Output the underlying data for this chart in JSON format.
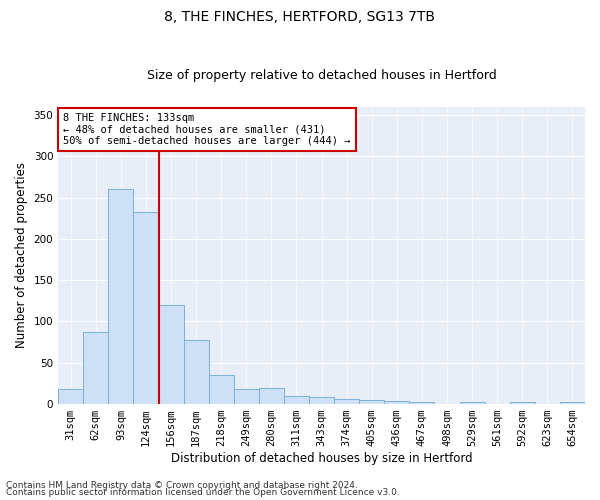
{
  "title1": "8, THE FINCHES, HERTFORD, SG13 7TB",
  "title2": "Size of property relative to detached houses in Hertford",
  "xlabel": "Distribution of detached houses by size in Hertford",
  "ylabel": "Number of detached properties",
  "categories": [
    "31sqm",
    "62sqm",
    "93sqm",
    "124sqm",
    "156sqm",
    "187sqm",
    "218sqm",
    "249sqm",
    "280sqm",
    "311sqm",
    "343sqm",
    "374sqm",
    "405sqm",
    "436sqm",
    "467sqm",
    "498sqm",
    "529sqm",
    "561sqm",
    "592sqm",
    "623sqm",
    "654sqm"
  ],
  "values": [
    18,
    87,
    260,
    232,
    120,
    78,
    35,
    18,
    20,
    10,
    8,
    6,
    5,
    4,
    3,
    0,
    3,
    0,
    3,
    0,
    3
  ],
  "bar_color": "#cde0f5",
  "bar_edge_color": "#7ab0d8",
  "vline_color": "#cc0000",
  "annotation_text": "8 THE FINCHES: 133sqm\n← 48% of detached houses are smaller (431)\n50% of semi-detached houses are larger (444) →",
  "annotation_box_color": "#ffffff",
  "annotation_box_edge": "#cc0000",
  "ylim": [
    0,
    360
  ],
  "yticks": [
    0,
    50,
    100,
    150,
    200,
    250,
    300,
    350
  ],
  "bg_color": "#e8eef8",
  "grid_color": "#ffffff",
  "footer1": "Contains HM Land Registry data © Crown copyright and database right 2024.",
  "footer2": "Contains public sector information licensed under the Open Government Licence v3.0.",
  "title1_fontsize": 10,
  "title2_fontsize": 9,
  "tick_fontsize": 7.5,
  "label_fontsize": 8.5,
  "footer_fontsize": 6.5,
  "annotation_fontsize": 7.5
}
